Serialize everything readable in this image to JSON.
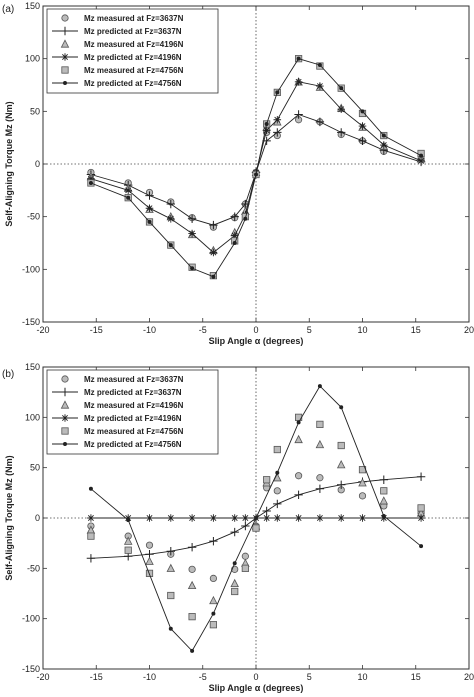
{
  "chart_data": [
    {
      "type": "line",
      "panel_label": "(a)",
      "xlabel": "Slip Angle α (degrees)",
      "ylabel": "Self-Aligning Torque Mz (Nm)",
      "xlim": [
        -20,
        20
      ],
      "ylim": [
        -150,
        150
      ],
      "x_ticks": [
        -20,
        -15,
        -10,
        -5,
        0,
        5,
        10,
        15,
        20
      ],
      "y_ticks": [
        -150,
        -100,
        -50,
        0,
        50,
        100,
        150
      ],
      "grid": false,
      "reference_lines": {
        "x": 0,
        "y": 0
      },
      "legend_position": "top-left",
      "series": [
        {
          "name": "Mz measured at Fz=3637N",
          "marker": "circle",
          "line": false,
          "color": "#bbbbbb",
          "x": [
            -15.5,
            -12,
            -10,
            -8,
            -6,
            -4,
            -2,
            -1,
            0,
            1,
            2,
            4,
            6,
            8,
            10,
            12,
            15.5
          ],
          "y": [
            -8,
            -18,
            -27,
            -36,
            -51,
            -60,
            -51,
            -38,
            -8,
            30,
            27,
            42,
            40,
            28,
            22,
            12,
            5
          ]
        },
        {
          "name": "Mz predicted at Fz=3637N",
          "marker": "plus",
          "line": true,
          "color": "#222222",
          "x": [
            -15.5,
            -12,
            -10,
            -8,
            -6,
            -4,
            -2,
            -1,
            0,
            1,
            2,
            4,
            6,
            8,
            10,
            12,
            15.5
          ],
          "y": [
            -10,
            -20,
            -30,
            -38,
            -52,
            -58,
            -50,
            -38,
            -8,
            22,
            30,
            47,
            40,
            30,
            22,
            13,
            2
          ]
        },
        {
          "name": "Mz measured at Fz=4196N",
          "marker": "triangle",
          "line": false,
          "color": "#bbbbbb",
          "x": [
            -15.5,
            -12,
            -10,
            -8,
            -6,
            -4,
            -2,
            -1,
            0,
            1,
            2,
            4,
            6,
            8,
            10,
            12,
            15.5
          ],
          "y": [
            -12,
            -23,
            -43,
            -50,
            -67,
            -82,
            -65,
            -45,
            -8,
            35,
            40,
            78,
            73,
            53,
            35,
            17,
            5
          ]
        },
        {
          "name": "Mz predicted at Fz=4196N",
          "marker": "asterisk",
          "line": true,
          "color": "#222222",
          "x": [
            -15.5,
            -12,
            -10,
            -8,
            -6,
            -4,
            -2,
            -1,
            0,
            1,
            2,
            4,
            6,
            8,
            10,
            12,
            15.5
          ],
          "y": [
            -14,
            -25,
            -42,
            -52,
            -66,
            -84,
            -68,
            -48,
            -8,
            32,
            42,
            78,
            74,
            52,
            36,
            18,
            3
          ]
        },
        {
          "name": "Mz measured at Fz=4756N",
          "marker": "square",
          "line": false,
          "color": "#bbbbbb",
          "x": [
            -15.5,
            -12,
            -10,
            -8,
            -6,
            -4,
            -2,
            -1,
            0,
            1,
            2,
            4,
            6,
            8,
            10,
            12,
            15.5
          ],
          "y": [
            -18,
            -32,
            -55,
            -77,
            -98,
            -106,
            -73,
            -50,
            -10,
            38,
            68,
            100,
            93,
            72,
            48,
            27,
            10
          ]
        },
        {
          "name": "Mz predicted at Fz=4756N",
          "marker": "dot",
          "line": true,
          "color": "#222222",
          "x": [
            -15.5,
            -12,
            -10,
            -8,
            -6,
            -4,
            -2,
            -1,
            0,
            1,
            2,
            4,
            6,
            8,
            10,
            12,
            15.5
          ],
          "y": [
            -18,
            -32,
            -55,
            -77,
            -99,
            -107,
            -75,
            -52,
            -10,
            38,
            68,
            100,
            94,
            72,
            50,
            27,
            8
          ]
        }
      ]
    },
    {
      "type": "line",
      "panel_label": "(b)",
      "xlabel": "Slip Angle α (degrees)",
      "ylabel": "Self-Aligning Torque Mz (Nm)",
      "xlim": [
        -20,
        20
      ],
      "ylim": [
        -150,
        150
      ],
      "x_ticks": [
        -20,
        -15,
        -10,
        -5,
        0,
        5,
        10,
        15,
        20
      ],
      "y_ticks": [
        -150,
        -100,
        -50,
        0,
        50,
        100,
        150
      ],
      "grid": false,
      "reference_lines": {
        "x": 0,
        "y": 0
      },
      "legend_position": "top-left",
      "series": [
        {
          "name": "Mz measured at Fz=3637N",
          "marker": "circle",
          "line": false,
          "color": "#bbbbbb",
          "x": [
            -15.5,
            -12,
            -10,
            -8,
            -6,
            -4,
            -2,
            -1,
            0,
            1,
            2,
            4,
            6,
            8,
            10,
            12,
            15.5
          ],
          "y": [
            -8,
            -18,
            -27,
            -36,
            -51,
            -60,
            -51,
            -38,
            -8,
            30,
            27,
            42,
            40,
            28,
            22,
            12,
            5
          ]
        },
        {
          "name": "Mz predicted at Fz=3637N",
          "marker": "plus",
          "line": true,
          "color": "#222222",
          "x": [
            -15.5,
            -12,
            -10,
            -8,
            -6,
            -4,
            -2,
            -1,
            0,
            1,
            2,
            4,
            6,
            8,
            10,
            12,
            15.5
          ],
          "y": [
            -40,
            -38,
            -36,
            -33,
            -29,
            -23,
            -14,
            -8,
            0,
            7,
            14,
            23,
            29,
            33,
            36,
            38,
            41
          ]
        },
        {
          "name": "Mz measured at Fz=4196N",
          "marker": "triangle",
          "line": false,
          "color": "#bbbbbb",
          "x": [
            -15.5,
            -12,
            -10,
            -8,
            -6,
            -4,
            -2,
            -1,
            0,
            1,
            2,
            4,
            6,
            8,
            10,
            12,
            15.5
          ],
          "y": [
            -12,
            -23,
            -43,
            -50,
            -67,
            -82,
            -65,
            -45,
            -8,
            35,
            40,
            78,
            73,
            53,
            35,
            17,
            5
          ]
        },
        {
          "name": "Mz predicted at Fz=4196N",
          "marker": "asterisk",
          "line": true,
          "color": "#222222",
          "x": [
            -15.5,
            -12,
            -10,
            -8,
            -6,
            -4,
            -2,
            -1,
            0,
            1,
            2,
            4,
            6,
            8,
            10,
            12,
            15.5
          ],
          "y": [
            0,
            0,
            0,
            0,
            0,
            0,
            0,
            0,
            0,
            0,
            0,
            0,
            0,
            0,
            0,
            0,
            0
          ]
        },
        {
          "name": "Mz measured at Fz=4756N",
          "marker": "square",
          "line": false,
          "color": "#bbbbbb",
          "x": [
            -15.5,
            -12,
            -10,
            -8,
            -6,
            -4,
            -2,
            -1,
            0,
            1,
            2,
            4,
            6,
            8,
            10,
            12,
            15.5
          ],
          "y": [
            -18,
            -32,
            -55,
            -77,
            -98,
            -106,
            -73,
            -50,
            -10,
            38,
            68,
            100,
            93,
            72,
            48,
            27,
            10
          ]
        },
        {
          "name": "Mz predicted at Fz=4756N",
          "marker": "dot",
          "line": true,
          "color": "#222222",
          "x": [
            -15.5,
            -12,
            -8,
            -6,
            -4,
            -2,
            0,
            2,
            4,
            6,
            8,
            12,
            15.5
          ],
          "y": [
            29,
            -2,
            -110,
            -132,
            -95,
            -45,
            0,
            45,
            95,
            131,
            110,
            2,
            -28
          ]
        }
      ]
    }
  ]
}
